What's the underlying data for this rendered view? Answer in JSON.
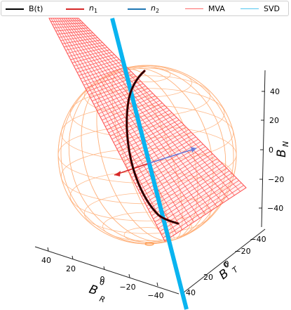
{
  "chart_data": {
    "type": "scatter",
    "projection": "3d",
    "legend": {
      "placement": "top",
      "entries": [
        {
          "key": "bt",
          "label": "B(t)",
          "sub": "",
          "color": "#000000",
          "width": 2.2
        },
        {
          "key": "n1",
          "label": "n",
          "sub": "1",
          "color": "#d62728",
          "width": 1.4
        },
        {
          "key": "n2",
          "label": "n",
          "sub": "2",
          "color": "#1f77b4",
          "width": 2.0
        },
        {
          "key": "mva",
          "label": "MVA",
          "sub": "",
          "color": "#ff6b6b",
          "width": 1.0
        },
        {
          "key": "svd",
          "label": "SVD",
          "sub": "",
          "color": "#53c6ef",
          "width": 1.0
        }
      ]
    },
    "axes": {
      "x": {
        "label": "B",
        "sub": "R",
        "sup": "0",
        "ticks": [
          "40",
          "20",
          "0",
          "−20",
          "−40"
        ]
      },
      "y": {
        "label": "B",
        "sub": "T",
        "sup": "0",
        "ticks": [
          "−40",
          "−20",
          "0",
          "20",
          "40"
        ]
      },
      "z": {
        "label": "B",
        "sub": "N",
        "ticks": [
          "40",
          "20",
          "0",
          "−20",
          "−40"
        ]
      },
      "range": [
        -50,
        50
      ]
    },
    "sphere": {
      "radius": 50,
      "color": "#ffb07a"
    },
    "planes": [
      {
        "name": "MVA",
        "color": "#ff4d4d"
      },
      {
        "name": "SVD",
        "color": "#0ab4f0"
      }
    ],
    "vectors": [
      {
        "name": "n1",
        "color": "#d62728"
      },
      {
        "name": "n2",
        "color": "#6a7bd8"
      }
    ],
    "series": [
      {
        "name": "B(t)",
        "color": "#000000"
      }
    ]
  }
}
